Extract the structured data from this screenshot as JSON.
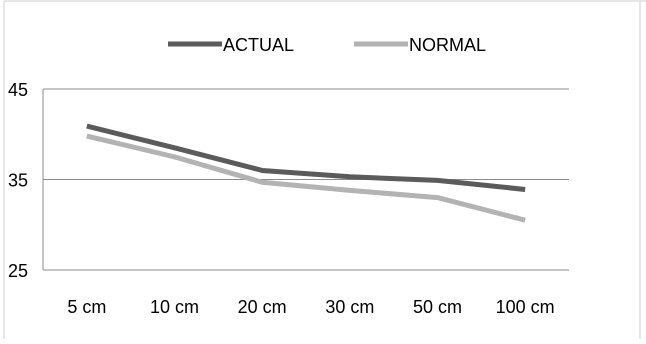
{
  "chart_data": {
    "type": "line",
    "categories": [
      "5 cm",
      "10 cm",
      "20 cm",
      "30 cm",
      "50 cm",
      "100 cm"
    ],
    "series": [
      {
        "name": "ACTUAL",
        "values": [
          40.9,
          38.5,
          36.0,
          35.3,
          34.9,
          33.9
        ],
        "color": "#5b5b5b"
      },
      {
        "name": "NORMAL",
        "values": [
          39.8,
          37.5,
          34.7,
          33.8,
          33.0,
          30.5
        ],
        "color": "#b3b3b3"
      }
    ],
    "yticks": [
      "45",
      "35",
      "25"
    ],
    "ylim": [
      25,
      45
    ],
    "grid": true,
    "legend_position": "top",
    "title": "",
    "xlabel": "",
    "ylabel": ""
  }
}
